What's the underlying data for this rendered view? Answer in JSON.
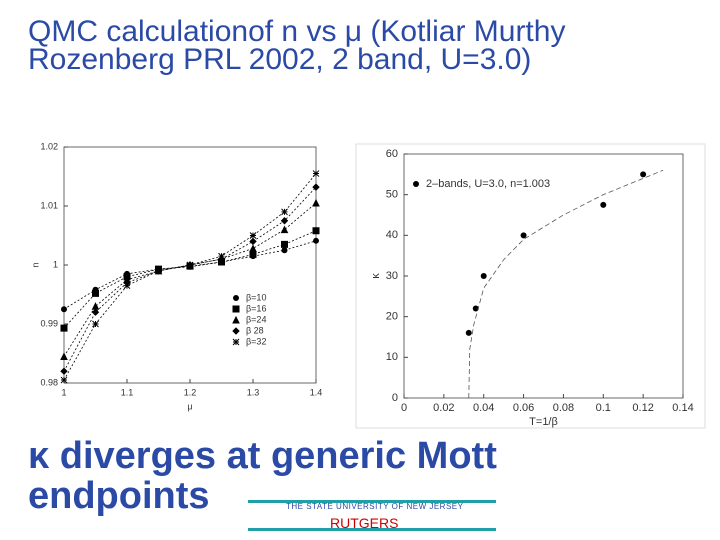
{
  "title": "QMC calculationof n vs μ  (Kotliar Murthy Rozenberg PRL  2002, 2 band, U=3.0)",
  "caption": "κ  diverges at generic Mott endpoints",
  "logo": {
    "subtitle": "THE STATE UNIVERSITY OF NEW JERSEY",
    "name": "RUTGERS"
  },
  "chart_data": [
    {
      "type": "line",
      "xlabel": "μ",
      "ylabel": "n",
      "x": [
        1,
        1.05,
        1.1,
        1.15,
        1.2,
        1.25,
        1.3,
        1.35,
        1.4
      ],
      "xlim": [
        1,
        1.4
      ],
      "xticks": [
        1,
        1.1,
        1.2,
        1.3,
        1.4
      ],
      "ylim": [
        0.98,
        1.02
      ],
      "yticks": [
        0.98,
        0.99,
        1,
        1.01,
        1.02
      ],
      "legend": "lower right",
      "series": [
        {
          "name": "β=10",
          "color": "#000000",
          "marker": "circle",
          "values": [
            0.9925,
            0.9958,
            0.9985,
            0.9993,
            0.9997,
            1.0005,
            1.0015,
            1.0025,
            1.0041
          ]
        },
        {
          "name": "β=16",
          "color": "#000000",
          "marker": "square",
          "values": [
            0.9893,
            0.9952,
            0.998,
            0.9993,
            0.9998,
            1.0005,
            1.0018,
            1.0035,
            1.0058
          ]
        },
        {
          "name": "β=24",
          "color": "#000000",
          "marker": "triangle",
          "values": [
            0.9845,
            0.993,
            0.9975,
            0.999,
            1.0,
            1.001,
            1.0028,
            1.006,
            1.0105
          ]
        },
        {
          "name": "β 28",
          "color": "#000000",
          "marker": "diamond",
          "values": [
            0.982,
            0.992,
            0.997,
            0.999,
            1.0,
            1.001,
            1.004,
            1.0075,
            1.0132
          ]
        },
        {
          "name": "β=32",
          "color": "#000000",
          "marker": "star",
          "values": [
            0.9805,
            0.99,
            0.9965,
            0.999,
            1.0,
            1.0015,
            1.005,
            1.009,
            1.0155
          ]
        }
      ]
    },
    {
      "type": "scatter",
      "xlabel": "T=1/β",
      "ylabel": "κ",
      "xlim": [
        0,
        0.14
      ],
      "xticks": [
        0,
        0.02,
        0.04,
        0.06,
        0.08,
        0.1,
        0.12,
        0.14
      ],
      "ylim": [
        0,
        60
      ],
      "yticks": [
        0,
        10,
        20,
        30,
        40,
        50,
        60
      ],
      "legend": "upper left",
      "series": [
        {
          "name": "2–bands, U=3.0, n=1.003",
          "color": "#000000",
          "marker": "circle",
          "x": [
            0.0325,
            0.036,
            0.04,
            0.06,
            0.1,
            0.12
          ],
          "values": [
            16,
            22,
            30,
            40,
            47.5,
            55
          ]
        },
        {
          "color": "#555555",
          "line_style": "dashed",
          "x": [
            0.0325,
            0.033,
            0.035,
            0.04,
            0.05,
            0.06,
            0.08,
            0.1,
            0.12,
            0.13
          ],
          "values": [
            0,
            12,
            18,
            27,
            34,
            39,
            45,
            50,
            54,
            56
          ]
        }
      ]
    }
  ]
}
